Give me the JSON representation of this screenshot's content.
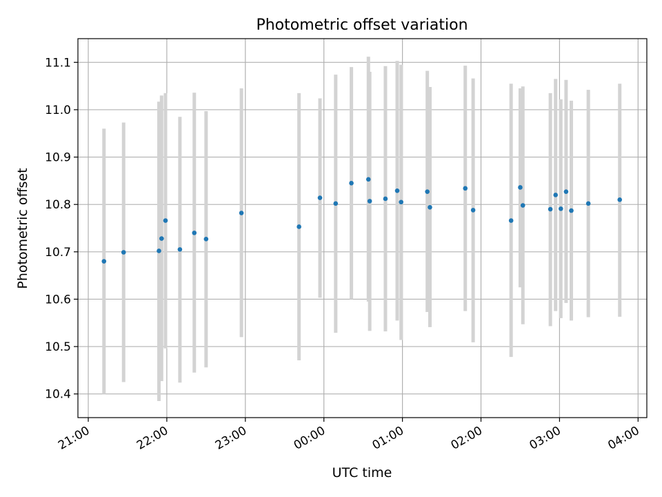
{
  "chart_data": {
    "type": "scatter",
    "title": "Photometric offset variation",
    "xlabel": "UTC time",
    "ylabel": "Photometric offset",
    "x_tick_labels": [
      "21:00",
      "22:00",
      "23:00",
      "00:00",
      "01:00",
      "02:00",
      "03:00",
      "04:00"
    ],
    "y_tick_labels": [
      "10.4",
      "10.5",
      "10.6",
      "10.7",
      "10.8",
      "10.9",
      "11.0",
      "11.1"
    ],
    "y_ticks": [
      10.4,
      10.5,
      10.6,
      10.7,
      10.8,
      10.9,
      11.0,
      11.1
    ],
    "xlim": [
      "21:00",
      "04:05"
    ],
    "ylim": [
      10.35,
      11.15
    ],
    "grid": true,
    "marker_color": "#1f77b4",
    "errorbar_color": "#d3d3d3",
    "points": [
      {
        "time": "21:12",
        "y": 10.68,
        "ylow": 10.4,
        "yhigh": 10.96
      },
      {
        "time": "21:27",
        "y": 10.699,
        "ylow": 10.425,
        "yhigh": 10.973
      },
      {
        "time": "21:54",
        "y": 10.702,
        "ylow": 10.385,
        "yhigh": 11.017
      },
      {
        "time": "21:56",
        "y": 10.728,
        "ylow": 10.427,
        "yhigh": 11.03
      },
      {
        "time": "21:59",
        "y": 10.766,
        "ylow": 10.496,
        "yhigh": 11.035
      },
      {
        "time": "22:10",
        "y": 10.705,
        "ylow": 10.424,
        "yhigh": 10.985
      },
      {
        "time": "22:21",
        "y": 10.74,
        "ylow": 10.445,
        "yhigh": 11.036
      },
      {
        "time": "22:30",
        "y": 10.727,
        "ylow": 10.456,
        "yhigh": 10.997
      },
      {
        "time": "22:57",
        "y": 10.782,
        "ylow": 10.52,
        "yhigh": 11.045
      },
      {
        "time": "23:41",
        "y": 10.753,
        "ylow": 10.471,
        "yhigh": 11.035
      },
      {
        "time": "23:57",
        "y": 10.814,
        "ylow": 10.603,
        "yhigh": 11.024
      },
      {
        "time": "00:09",
        "y": 10.802,
        "ylow": 10.529,
        "yhigh": 11.074
      },
      {
        "time": "00:21",
        "y": 10.845,
        "ylow": 10.6,
        "yhigh": 11.09
      },
      {
        "time": "00:34",
        "y": 10.853,
        "ylow": 10.595,
        "yhigh": 11.112
      },
      {
        "time": "00:35",
        "y": 10.807,
        "ylow": 10.533,
        "yhigh": 11.08
      },
      {
        "time": "00:47",
        "y": 10.812,
        "ylow": 10.532,
        "yhigh": 11.092
      },
      {
        "time": "00:56",
        "y": 10.829,
        "ylow": 10.555,
        "yhigh": 11.103
      },
      {
        "time": "00:59",
        "y": 10.805,
        "ylow": 10.514,
        "yhigh": 11.095
      },
      {
        "time": "01:19",
        "y": 10.827,
        "ylow": 10.573,
        "yhigh": 11.082
      },
      {
        "time": "01:21",
        "y": 10.794,
        "ylow": 10.541,
        "yhigh": 11.048
      },
      {
        "time": "01:48",
        "y": 10.834,
        "ylow": 10.575,
        "yhigh": 11.093
      },
      {
        "time": "01:54",
        "y": 10.788,
        "ylow": 10.509,
        "yhigh": 11.066
      },
      {
        "time": "02:23",
        "y": 10.766,
        "ylow": 10.478,
        "yhigh": 11.055
      },
      {
        "time": "02:30",
        "y": 10.836,
        "ylow": 10.625,
        "yhigh": 11.045
      },
      {
        "time": "02:32",
        "y": 10.798,
        "ylow": 10.547,
        "yhigh": 11.049
      },
      {
        "time": "02:53",
        "y": 10.79,
        "ylow": 10.543,
        "yhigh": 11.035
      },
      {
        "time": "02:57",
        "y": 10.82,
        "ylow": 10.575,
        "yhigh": 11.065
      },
      {
        "time": "03:01",
        "y": 10.791,
        "ylow": 10.56,
        "yhigh": 11.022
      },
      {
        "time": "03:05",
        "y": 10.827,
        "ylow": 10.592,
        "yhigh": 11.063
      },
      {
        "time": "03:09",
        "y": 10.787,
        "ylow": 10.555,
        "yhigh": 11.019
      },
      {
        "time": "03:22",
        "y": 10.802,
        "ylow": 10.562,
        "yhigh": 11.042
      },
      {
        "time": "03:46",
        "y": 10.81,
        "ylow": 10.563,
        "yhigh": 11.055
      }
    ]
  }
}
